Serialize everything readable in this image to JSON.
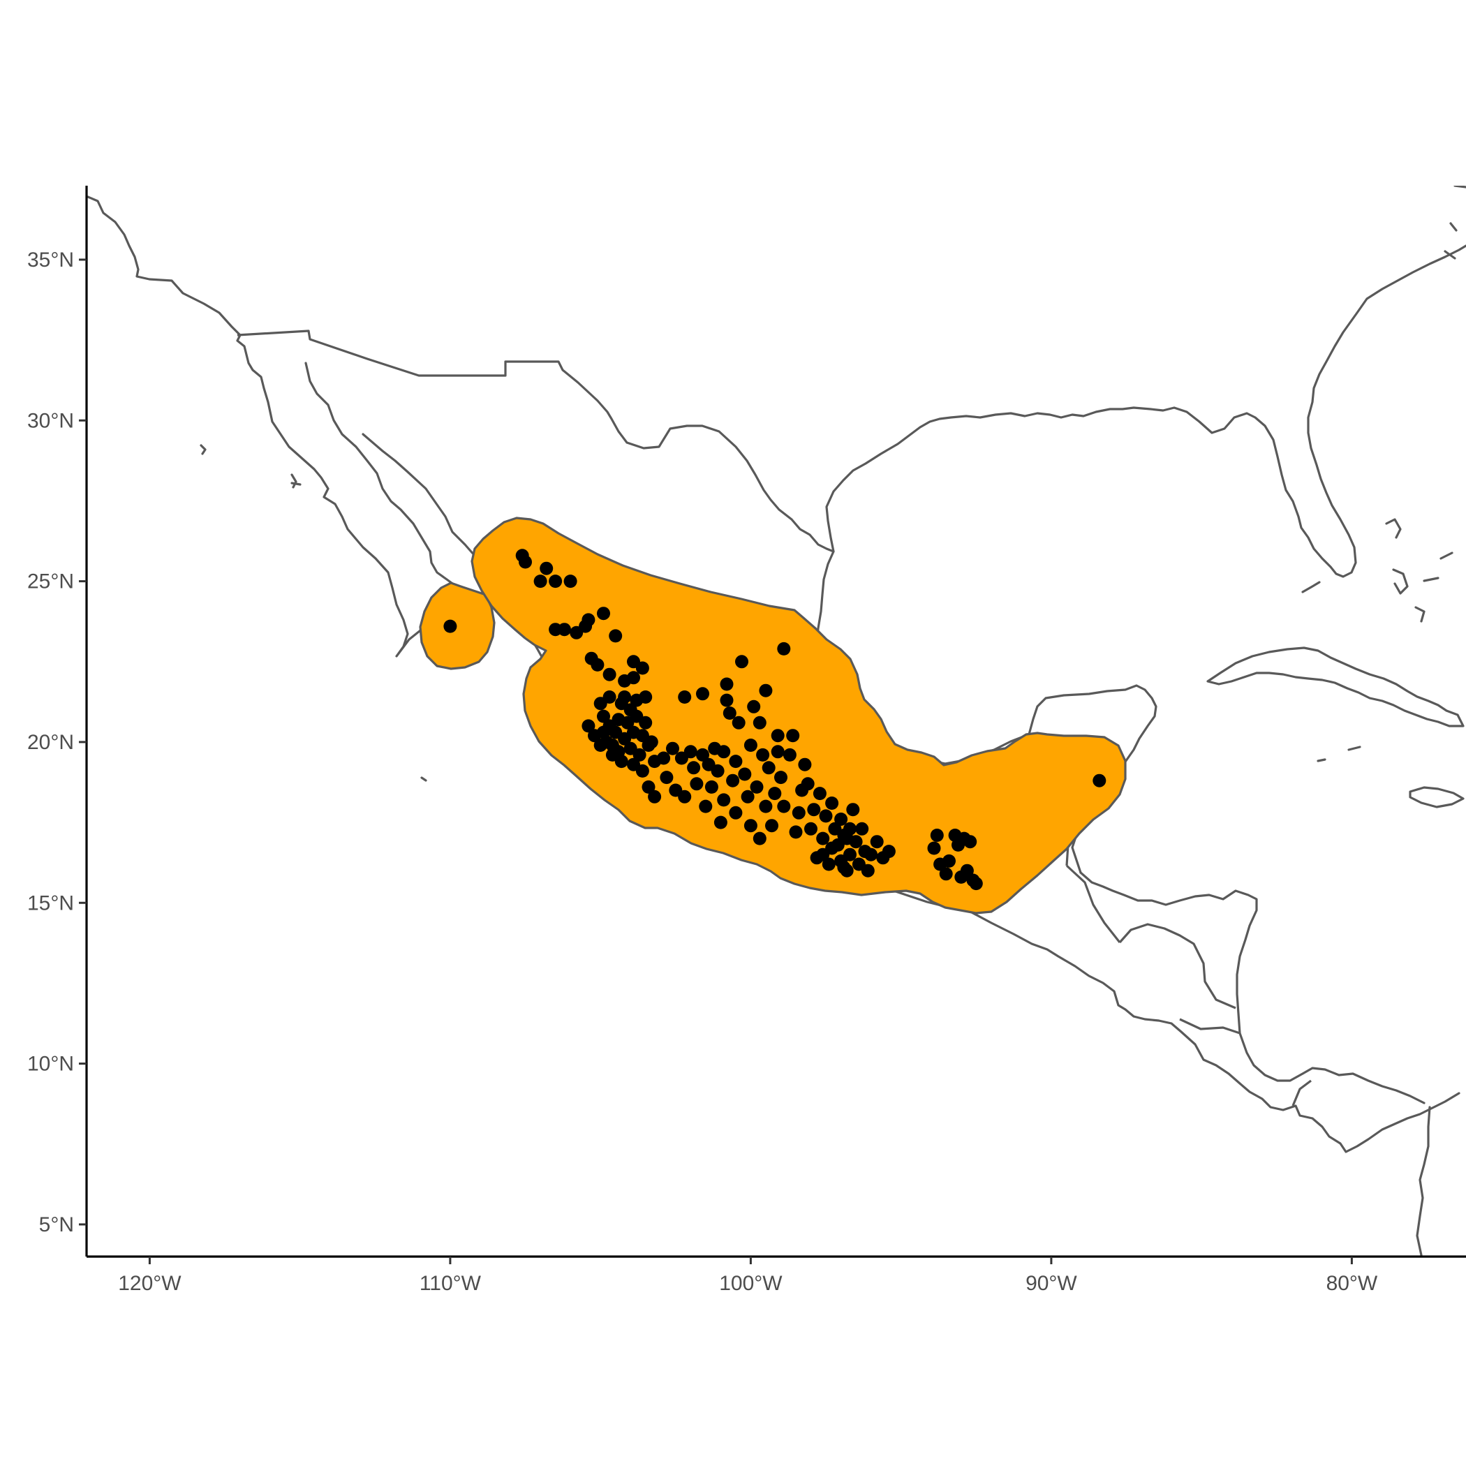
{
  "map": {
    "x_axis": {
      "ticks": [
        {
          "value": -120,
          "label": "120°W"
        },
        {
          "value": -110,
          "label": "110°W"
        },
        {
          "value": -100,
          "label": "100°W"
        },
        {
          "value": -90,
          "label": "90°W"
        },
        {
          "value": -80,
          "label": "80°W"
        }
      ],
      "range": [
        -122.1,
        -76.2
      ]
    },
    "y_axis": {
      "ticks": [
        {
          "value": 35,
          "label": "35°N"
        },
        {
          "value": 30,
          "label": "30°N"
        },
        {
          "value": 25,
          "label": "25°N"
        },
        {
          "value": 20,
          "label": "20°N"
        },
        {
          "value": 15,
          "label": "15°N"
        },
        {
          "value": 10,
          "label": "10°N"
        },
        {
          "value": 5,
          "label": "5°N"
        }
      ],
      "range": [
        4.0,
        37.3
      ]
    },
    "colors": {
      "range_fill": "#FFA500",
      "outline": "#595959",
      "points": "#000000",
      "background": "#FFFFFF"
    },
    "layers": [
      "country boundaries (outlines)",
      "species range polygon",
      "occurrence points"
    ],
    "grid": false
  },
  "chart_data": {
    "type": "scatter",
    "x_unit": "degrees longitude (negative = W)",
    "y_unit": "degrees latitude (N)",
    "occurrences": [
      [
        -110.0,
        23.6
      ],
      [
        -107.6,
        25.8
      ],
      [
        -107.5,
        25.6
      ],
      [
        -107.0,
        25.0
      ],
      [
        -106.8,
        25.4
      ],
      [
        -106.5,
        25.0
      ],
      [
        -106.0,
        25.0
      ],
      [
        -106.5,
        23.5
      ],
      [
        -106.2,
        23.5
      ],
      [
        -105.8,
        23.4
      ],
      [
        -105.5,
        23.6
      ],
      [
        -105.4,
        23.8
      ],
      [
        -105.3,
        22.6
      ],
      [
        -105.1,
        22.4
      ],
      [
        -104.9,
        24.0
      ],
      [
        -104.7,
        22.1
      ],
      [
        -104.5,
        23.3
      ],
      [
        -104.2,
        21.9
      ],
      [
        -103.9,
        22.0
      ],
      [
        -103.9,
        22.5
      ],
      [
        -103.6,
        22.3
      ],
      [
        -105.4,
        20.5
      ],
      [
        -105.2,
        20.2
      ],
      [
        -105.0,
        21.2
      ],
      [
        -104.9,
        20.8
      ],
      [
        -104.8,
        20.0
      ],
      [
        -104.7,
        20.5
      ],
      [
        -104.7,
        21.4
      ],
      [
        -104.6,
        19.9
      ],
      [
        -104.5,
        20.3
      ],
      [
        -104.4,
        20.7
      ],
      [
        -104.4,
        19.7
      ],
      [
        -104.3,
        21.2
      ],
      [
        -104.2,
        20.1
      ],
      [
        -104.1,
        20.6
      ],
      [
        -104.0,
        19.8
      ],
      [
        -104.0,
        21.0
      ],
      [
        -103.9,
        20.3
      ],
      [
        -103.8,
        20.8
      ],
      [
        -103.7,
        19.6
      ],
      [
        -103.6,
        20.2
      ],
      [
        -103.5,
        21.4
      ],
      [
        -103.5,
        20.6
      ],
      [
        -103.4,
        19.9
      ],
      [
        -103.3,
        20.0
      ],
      [
        -103.2,
        19.4
      ],
      [
        -103.6,
        19.1
      ],
      [
        -103.4,
        18.6
      ],
      [
        -103.2,
        18.3
      ],
      [
        -103.9,
        19.3
      ],
      [
        -104.3,
        19.4
      ],
      [
        -104.6,
        19.6
      ],
      [
        -105.0,
        19.9
      ],
      [
        -104.9,
        20.3
      ],
      [
        -104.2,
        21.4
      ],
      [
        -103.8,
        21.3
      ],
      [
        -102.9,
        19.5
      ],
      [
        -102.8,
        18.9
      ],
      [
        -102.6,
        19.8
      ],
      [
        -102.5,
        18.5
      ],
      [
        -102.3,
        19.5
      ],
      [
        -102.2,
        18.3
      ],
      [
        -102.2,
        21.4
      ],
      [
        -102.0,
        19.7
      ],
      [
        -101.9,
        19.2
      ],
      [
        -101.8,
        18.7
      ],
      [
        -101.6,
        21.5
      ],
      [
        -101.6,
        19.6
      ],
      [
        -101.5,
        18.0
      ],
      [
        -101.4,
        19.3
      ],
      [
        -101.3,
        18.6
      ],
      [
        -101.2,
        19.8
      ],
      [
        -101.1,
        19.1
      ],
      [
        -101.0,
        17.5
      ],
      [
        -100.9,
        18.2
      ],
      [
        -100.9,
        19.7
      ],
      [
        -100.8,
        21.3
      ],
      [
        -100.8,
        21.8
      ],
      [
        -100.7,
        20.9
      ],
      [
        -100.6,
        18.8
      ],
      [
        -100.5,
        17.8
      ],
      [
        -100.5,
        19.4
      ],
      [
        -100.4,
        20.6
      ],
      [
        -100.3,
        22.5
      ],
      [
        -100.2,
        19.0
      ],
      [
        -100.1,
        18.3
      ],
      [
        -100.0,
        17.4
      ],
      [
        -100.0,
        19.9
      ],
      [
        -99.9,
        21.1
      ],
      [
        -99.8,
        18.6
      ],
      [
        -99.7,
        17.0
      ],
      [
        -99.7,
        20.6
      ],
      [
        -99.6,
        19.6
      ],
      [
        -99.5,
        18.0
      ],
      [
        -99.5,
        21.6
      ],
      [
        -99.4,
        19.2
      ],
      [
        -99.3,
        17.4
      ],
      [
        -99.2,
        18.4
      ],
      [
        -99.1,
        20.2
      ],
      [
        -99.1,
        19.7
      ],
      [
        -99.0,
        18.9
      ],
      [
        -98.9,
        18.0
      ],
      [
        -98.9,
        22.9
      ],
      [
        -98.7,
        19.6
      ],
      [
        -98.6,
        20.2
      ],
      [
        -98.5,
        17.2
      ],
      [
        -98.4,
        17.8
      ],
      [
        -98.3,
        18.5
      ],
      [
        -98.2,
        19.3
      ],
      [
        -98.1,
        18.7
      ],
      [
        -98.0,
        17.3
      ],
      [
        -97.9,
        17.9
      ],
      [
        -97.8,
        16.4
      ],
      [
        -97.7,
        18.4
      ],
      [
        -97.6,
        17.0
      ],
      [
        -97.5,
        17.7
      ],
      [
        -97.4,
        16.2
      ],
      [
        -97.3,
        18.1
      ],
      [
        -97.2,
        17.3
      ],
      [
        -97.1,
        16.8
      ],
      [
        -97.0,
        17.6
      ],
      [
        -96.9,
        16.1
      ],
      [
        -96.8,
        17.0
      ],
      [
        -96.7,
        16.5
      ],
      [
        -96.6,
        17.9
      ],
      [
        -96.5,
        16.9
      ],
      [
        -96.4,
        16.2
      ],
      [
        -96.3,
        17.3
      ],
      [
        -96.2,
        16.6
      ],
      [
        -96.1,
        16.0
      ],
      [
        -96.0,
        16.5
      ],
      [
        -95.8,
        16.9
      ],
      [
        -95.6,
        16.4
      ],
      [
        -95.4,
        16.6
      ],
      [
        -96.8,
        16.0
      ],
      [
        -97.0,
        16.3
      ],
      [
        -97.3,
        16.7
      ],
      [
        -97.6,
        16.5
      ],
      [
        -96.7,
        17.3
      ],
      [
        -96.9,
        17.1
      ],
      [
        -93.9,
        16.7
      ],
      [
        -93.8,
        17.1
      ],
      [
        -93.7,
        16.2
      ],
      [
        -93.5,
        15.9
      ],
      [
        -93.4,
        16.3
      ],
      [
        -93.2,
        17.1
      ],
      [
        -93.1,
        16.8
      ],
      [
        -92.9,
        17.0
      ],
      [
        -92.8,
        16.0
      ],
      [
        -92.6,
        15.7
      ],
      [
        -92.7,
        16.9
      ],
      [
        -93.0,
        15.8
      ],
      [
        -92.5,
        15.6
      ],
      [
        -88.4,
        18.8
      ]
    ]
  }
}
